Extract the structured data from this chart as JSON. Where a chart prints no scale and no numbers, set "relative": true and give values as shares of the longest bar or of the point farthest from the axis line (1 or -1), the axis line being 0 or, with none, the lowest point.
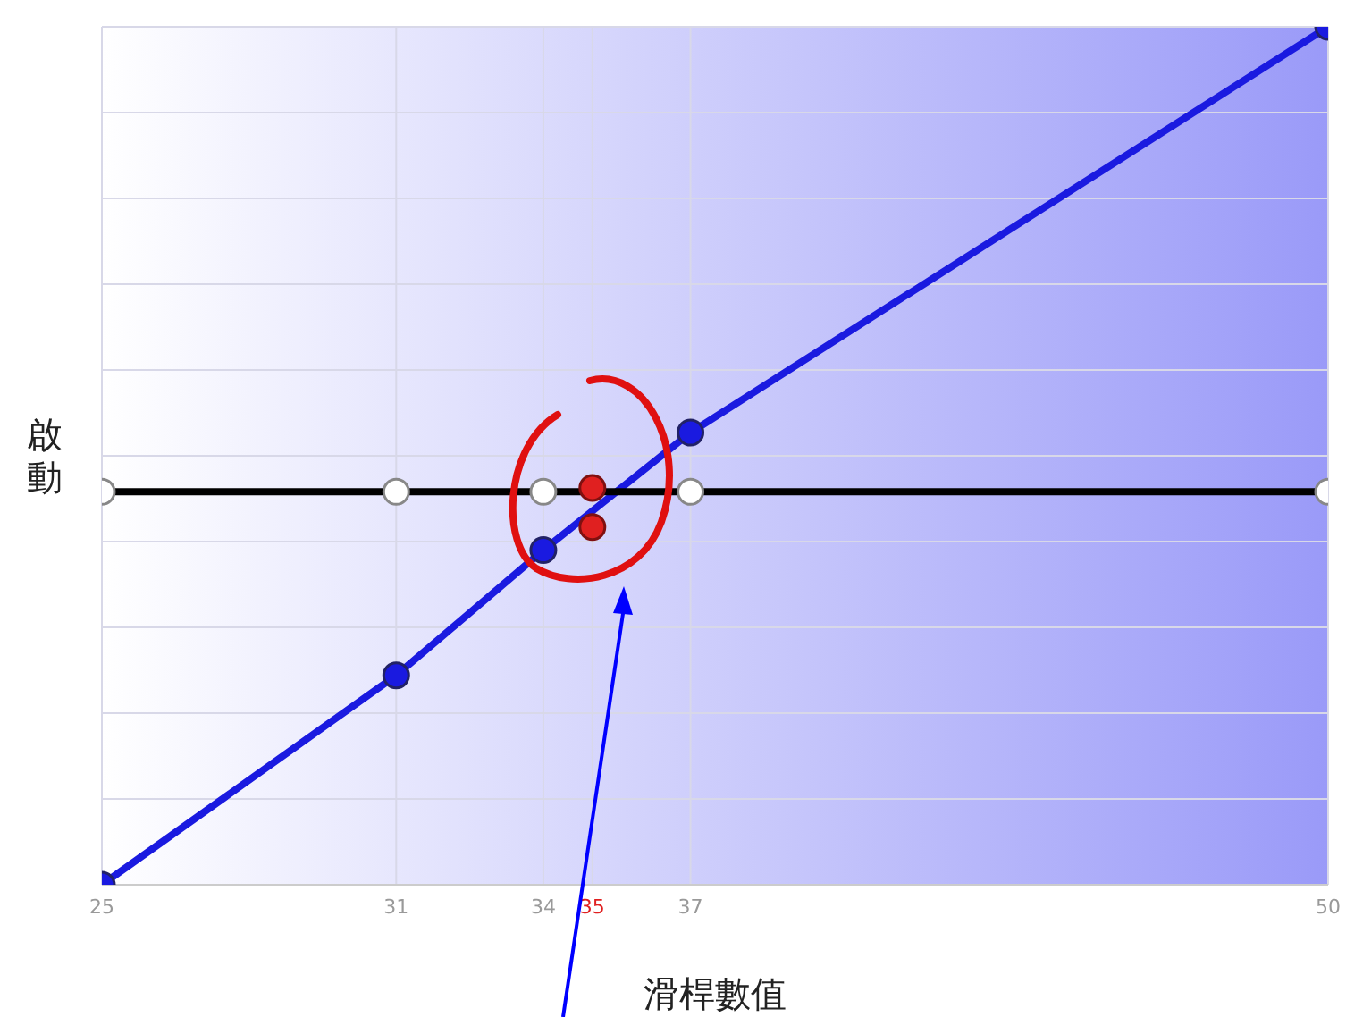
{
  "chart_data": {
    "type": "line",
    "xlabel": "滑桿數值",
    "ylabel": "啟動",
    "relative": true,
    "xlim": [
      25,
      50
    ],
    "xticks": [
      25,
      31,
      34,
      35,
      37,
      50
    ],
    "grid": true,
    "marker": "circle",
    "line_style": "solid",
    "series": [
      {
        "color": "#1a1ae0",
        "x": [
          25,
          31,
          34,
          37,
          50
        ],
        "values": [
          0,
          0.244,
          0.39,
          0.527,
          1
        ]
      },
      {
        "color": "#000000",
        "x": [
          25,
          31,
          34,
          37,
          50
        ],
        "values": [
          0.458,
          0.458,
          0.458,
          0.458,
          0.458
        ]
      },
      {
        "type": "scatter",
        "color": "#e02020",
        "x": [
          35,
          35
        ],
        "values": [
          0.4625,
          0.417
        ]
      }
    ]
  }
}
